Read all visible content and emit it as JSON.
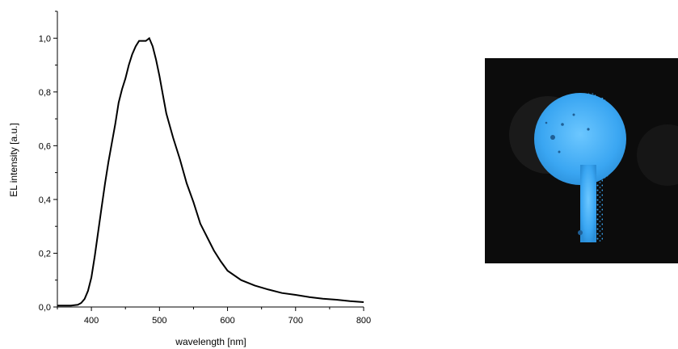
{
  "chart_data": {
    "type": "line",
    "xlabel": "wavelength [nm]",
    "ylabel": "EL intensity [a.u.]",
    "xlim": [
      350,
      800
    ],
    "ylim": [
      0.0,
      1.1
    ],
    "x_ticks": [
      "400",
      "500",
      "600",
      "700",
      "800"
    ],
    "y_ticks": [
      "0,0",
      "0,2",
      "0,4",
      "0,6",
      "0,8",
      "1,0"
    ],
    "grid": false,
    "series": [
      {
        "color": "#000000",
        "x": [
          350,
          360,
          370,
          380,
          385,
          390,
          395,
          400,
          405,
          410,
          415,
          420,
          425,
          430,
          435,
          440,
          445,
          450,
          455,
          460,
          465,
          470,
          475,
          480,
          485,
          490,
          495,
          500,
          505,
          510,
          520,
          530,
          540,
          550,
          560,
          570,
          580,
          590,
          600,
          620,
          640,
          660,
          680,
          700,
          720,
          740,
          760,
          780,
          800
        ],
        "y": [
          0.005,
          0.005,
          0.005,
          0.008,
          0.015,
          0.03,
          0.06,
          0.11,
          0.19,
          0.28,
          0.37,
          0.46,
          0.54,
          0.61,
          0.68,
          0.76,
          0.81,
          0.85,
          0.9,
          0.94,
          0.97,
          0.99,
          0.99,
          0.99,
          1.0,
          0.97,
          0.92,
          0.86,
          0.79,
          0.72,
          0.63,
          0.55,
          0.46,
          0.39,
          0.31,
          0.26,
          0.21,
          0.17,
          0.135,
          0.1,
          0.08,
          0.065,
          0.052,
          0.045,
          0.037,
          0.031,
          0.027,
          0.022,
          0.018
        ]
      }
    ]
  },
  "photo": {
    "content": "blue-electroluminescent-device-photo",
    "background_color": "#0c0c0c",
    "emission_color": "#3fa9f5"
  }
}
